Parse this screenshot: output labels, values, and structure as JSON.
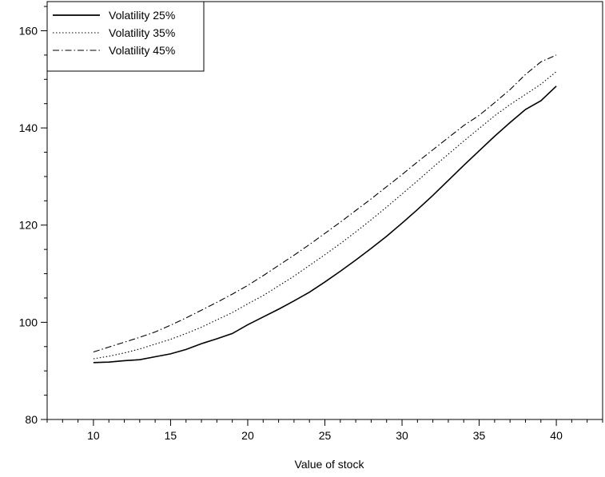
{
  "chart_data": {
    "type": "line",
    "title": "",
    "xlabel": "Value of stock",
    "ylabel": "",
    "xlim": [
      7,
      43
    ],
    "ylim": [
      80,
      166
    ],
    "xticks": [
      10,
      15,
      20,
      25,
      30,
      35,
      40
    ],
    "yticks": [
      80,
      100,
      120,
      140,
      160
    ],
    "grid": false,
    "legend_position": "top-left",
    "series": [
      {
        "name": "Volatility 25%",
        "style": "solid",
        "x": [
          10,
          11,
          12,
          13,
          14,
          15,
          16,
          17,
          18,
          19,
          20,
          21,
          22,
          23,
          24,
          25,
          26,
          27,
          28,
          29,
          30,
          31,
          32,
          33,
          34,
          35,
          36,
          37,
          38,
          39,
          40
        ],
        "y": [
          91.7,
          91.8,
          92.1,
          92.3,
          92.9,
          93.5,
          94.4,
          95.6,
          96.6,
          97.7,
          99.5,
          101.1,
          102.7,
          104.4,
          106.2,
          108.3,
          110.5,
          112.8,
          115.2,
          117.7,
          120.4,
          123.2,
          126.1,
          129.2,
          132.3,
          135.3,
          138.3,
          141.1,
          143.8,
          145.6,
          148.6
        ]
      },
      {
        "name": "Volatility 35%",
        "style": "dotted",
        "x": [
          10,
          11,
          12,
          13,
          14,
          15,
          16,
          17,
          18,
          19,
          20,
          21,
          22,
          23,
          24,
          25,
          26,
          27,
          28,
          29,
          30,
          31,
          32,
          33,
          34,
          35,
          36,
          37,
          38,
          39,
          40
        ],
        "y": [
          92.5,
          93.0,
          93.7,
          94.5,
          95.5,
          96.5,
          97.7,
          99.0,
          100.5,
          102.0,
          103.8,
          105.5,
          107.5,
          109.5,
          111.7,
          113.9,
          116.2,
          118.6,
          121.1,
          123.7,
          126.4,
          129.1,
          131.9,
          134.6,
          137.3,
          139.9,
          142.5,
          144.8,
          146.9,
          149.0,
          151.6
        ]
      },
      {
        "name": "Volatility 45%",
        "style": "dashdot",
        "x": [
          10,
          11,
          12,
          13,
          14,
          15,
          16,
          17,
          18,
          19,
          20,
          21,
          22,
          23,
          24,
          25,
          26,
          27,
          28,
          29,
          30,
          31,
          32,
          33,
          34,
          35,
          36,
          37,
          38,
          39,
          40
        ],
        "y": [
          93.9,
          94.9,
          95.9,
          96.9,
          98.0,
          99.4,
          100.9,
          102.5,
          104.1,
          105.8,
          107.6,
          109.6,
          111.7,
          113.8,
          116.0,
          118.3,
          120.6,
          123.0,
          125.4,
          127.9,
          130.4,
          133.0,
          135.5,
          138.0,
          140.5,
          142.6,
          145.2,
          147.9,
          151.0,
          153.6,
          155.0
        ]
      }
    ]
  }
}
